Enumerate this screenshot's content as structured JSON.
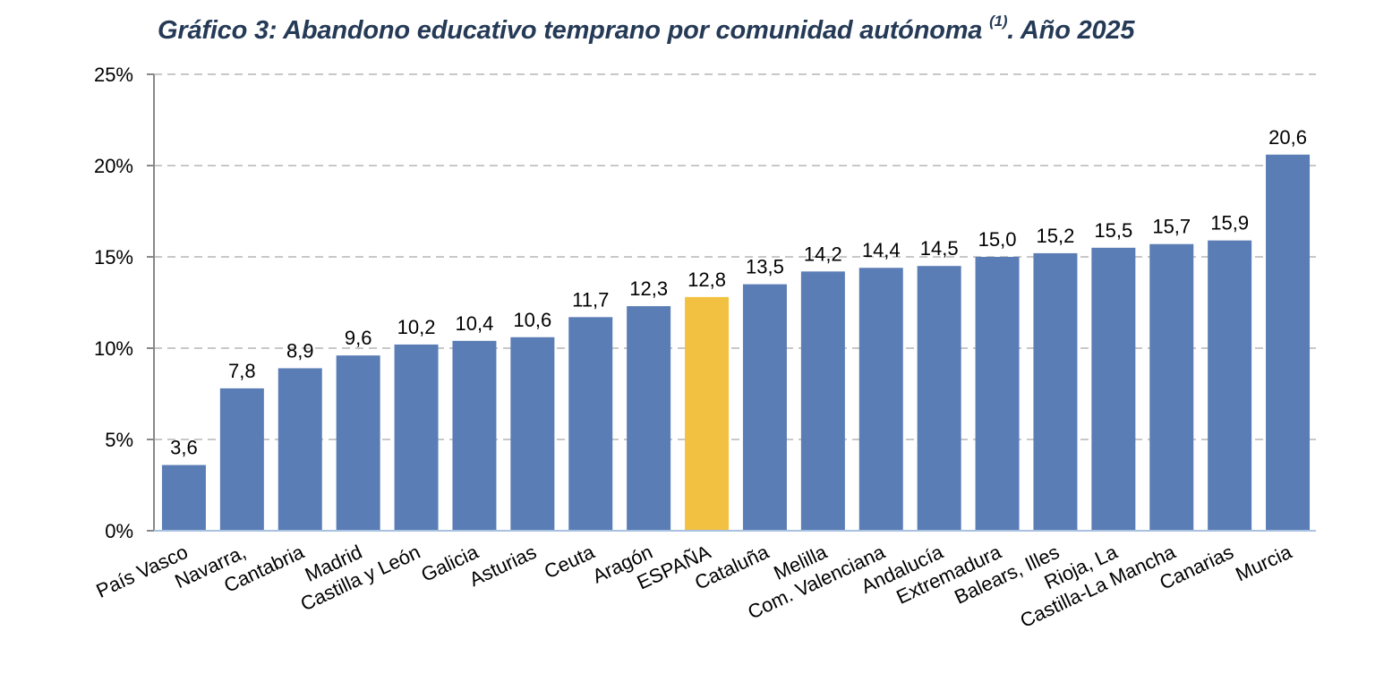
{
  "chart_data": {
    "type": "bar",
    "title": "Gráfico 3: Abandono educativo temprano por comunidad autónoma",
    "title_superscript": "(1)",
    "title_suffix": ". Año 2025",
    "categories": [
      "País Vasco",
      "Navarra,",
      "Cantabria",
      "Madrid",
      "Castilla y León",
      "Galicia",
      "Asturias",
      "Ceuta",
      "Aragón",
      "ESPAÑA",
      "Cataluña",
      "Melilla",
      "Com. Valenciana",
      "Andalucía",
      "Extremadura",
      "Balears, Illes",
      "Rioja, La",
      "Castilla-La Mancha",
      "Canarias",
      "Murcia"
    ],
    "values": [
      3.6,
      7.8,
      8.9,
      9.6,
      10.2,
      10.4,
      10.6,
      11.7,
      12.3,
      12.8,
      13.5,
      14.2,
      14.4,
      14.5,
      15.0,
      15.2,
      15.5,
      15.7,
      15.9,
      20.6
    ],
    "data_labels": [
      "3,6",
      "7,8",
      "8,9",
      "9,6",
      "10,2",
      "10,4",
      "10,6",
      "11,7",
      "12,3",
      "12,8",
      "13,5",
      "14,2",
      "14,4",
      "14,5",
      "15,0",
      "15,2",
      "15,5",
      "15,7",
      "15,9",
      "20,6"
    ],
    "highlight_category": "ESPAÑA",
    "ylim": [
      0,
      25
    ],
    "yticks": [
      "0%",
      "5%",
      "10%",
      "15%",
      "20%",
      "25%"
    ],
    "grid": true,
    "colors": {
      "bar": "#5b7db5",
      "highlight": "#f3c141",
      "grid": "#c8c8c8",
      "axis": "#888888",
      "title": "#253a56"
    }
  }
}
